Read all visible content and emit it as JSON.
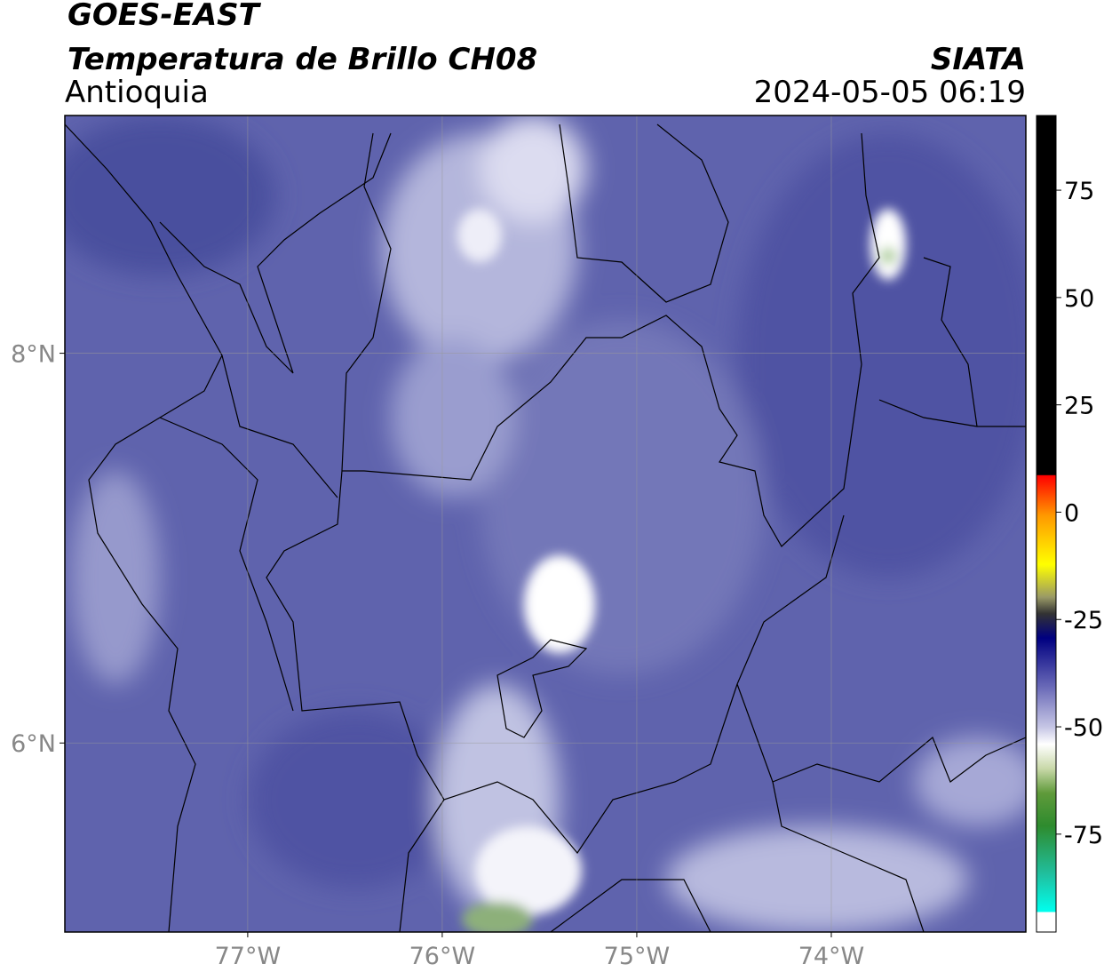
{
  "header": {
    "title": "GOES-EAST",
    "subtitle": "Temperatura de Brillo CH08",
    "region": "Antioquia",
    "source": "SIATA",
    "datetime": "2024-05-05 06:19"
  },
  "map": {
    "xlim": [
      -77.94,
      -73.0
    ],
    "ylim": [
      5.03,
      9.22
    ],
    "xticks": [
      {
        "value": -77,
        "label": "77°W"
      },
      {
        "value": -76,
        "label": "76°W"
      },
      {
        "value": -75,
        "label": "75°W"
      },
      {
        "value": -74,
        "label": "74°W"
      }
    ],
    "yticks": [
      {
        "value": 8,
        "label": "8°N"
      },
      {
        "value": 6,
        "label": "6°N"
      }
    ]
  },
  "colorbar": {
    "lim": [
      -97.8,
      92.4
    ],
    "ticks": [
      75,
      50,
      25,
      0,
      -25,
      -50,
      -75
    ]
  }
}
